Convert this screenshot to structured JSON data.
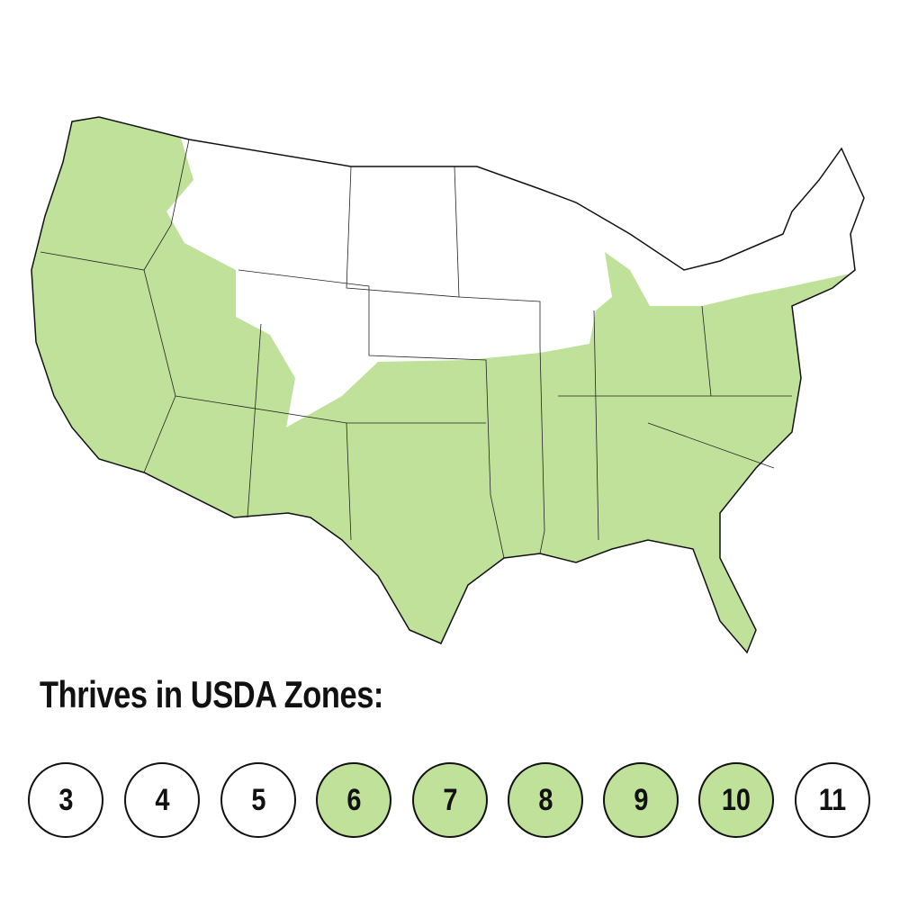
{
  "title": "Thrives in USDA Zones:",
  "colors": {
    "thrives": "#bfe19a",
    "not_thrives": "#ffffff",
    "border": "#111111"
  },
  "zones": [
    {
      "label": "3",
      "thrives": false
    },
    {
      "label": "4",
      "thrives": false
    },
    {
      "label": "5",
      "thrives": false
    },
    {
      "label": "6",
      "thrives": true
    },
    {
      "label": "7",
      "thrives": true
    },
    {
      "label": "8",
      "thrives": true
    },
    {
      "label": "9",
      "thrives": true
    },
    {
      "label": "10",
      "thrives": true
    },
    {
      "label": "11",
      "thrives": false
    }
  ]
}
